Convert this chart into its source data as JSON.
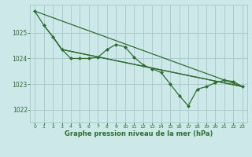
{
  "bg_color": "#cce8e8",
  "grid_color": "#aacccc",
  "line_color": "#2d6e2d",
  "marker_color": "#2d6e2d",
  "xlabel": "Graphe pression niveau de la mer (hPa)",
  "xlabel_color": "#2d6e2d",
  "tick_color": "#2d6e2d",
  "xlim": [
    -0.5,
    23.5
  ],
  "ylim": [
    1021.5,
    1026.1
  ],
  "yticks": [
    1022,
    1023,
    1024,
    1025
  ],
  "xticks": [
    0,
    1,
    2,
    3,
    4,
    5,
    6,
    7,
    8,
    9,
    10,
    11,
    12,
    13,
    14,
    15,
    16,
    17,
    18,
    19,
    20,
    21,
    22,
    23
  ],
  "line_main_x": [
    0,
    1,
    2,
    3,
    4,
    5,
    6,
    7,
    8,
    9,
    10,
    11,
    12,
    13,
    14,
    15,
    16,
    17,
    18,
    19,
    20,
    21,
    22,
    23
  ],
  "line_main_y": [
    1025.85,
    1025.3,
    1024.85,
    1024.35,
    1024.0,
    1024.0,
    1024.0,
    1024.05,
    1024.35,
    1024.55,
    1024.45,
    1024.05,
    1023.75,
    1023.6,
    1023.45,
    1023.0,
    1022.55,
    1022.15,
    1022.8,
    1022.9,
    1023.05,
    1023.15,
    1023.1,
    1022.9
  ],
  "line_trend1_x": [
    0,
    23
  ],
  "line_trend1_y": [
    1025.85,
    1022.9
  ],
  "line_trend2_x": [
    1,
    2,
    3,
    23
  ],
  "line_trend2_y": [
    1025.3,
    1024.85,
    1024.35,
    1022.9
  ],
  "line_trend3_x": [
    2,
    3,
    23
  ],
  "line_trend3_y": [
    1024.85,
    1024.35,
    1022.9
  ]
}
